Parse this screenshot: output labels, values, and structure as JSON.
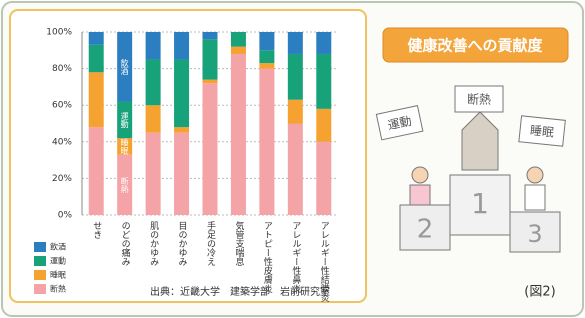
{
  "chart_data": {
    "type": "stacked_bar",
    "categories": [
      "せき",
      "のどの痛み",
      "肌のかゆみ",
      "目のかゆみ",
      "手足の冷え",
      "気管支喘息",
      "アトピー性皮膚炎",
      "アレルギー性鼻炎",
      "アレルギー性結膜炎"
    ],
    "series": [
      {
        "name": "飲酒",
        "color": "#2b7fc1",
        "values": [
          7,
          38,
          15,
          15,
          4,
          0,
          10,
          12,
          12
        ]
      },
      {
        "name": "運動",
        "color": "#18a27a",
        "values": [
          15,
          20,
          25,
          37,
          22,
          8,
          7,
          25,
          30
        ]
      },
      {
        "name": "睡眠",
        "color": "#f5a231",
        "values": [
          30,
          9,
          15,
          3,
          2,
          4,
          3,
          13,
          18
        ]
      },
      {
        "name": "断熱",
        "color": "#f4a3a7",
        "values": [
          48,
          33,
          45,
          45,
          72,
          88,
          80,
          50,
          40
        ]
      }
    ],
    "ylim": [
      0,
      100
    ],
    "yticks": [
      {
        "value": 0,
        "label": "0%"
      },
      {
        "value": 20,
        "label": "20%"
      },
      {
        "value": 40,
        "label": "40%"
      },
      {
        "value": 60,
        "label": "60%"
      },
      {
        "value": 80,
        "label": "80%"
      },
      {
        "value": 100,
        "label": "100%"
      }
    ],
    "source": "出典：近畿大学　建築学部　岩前研究室"
  },
  "illustration": {
    "title": "健康改善への貢献度",
    "signs": [
      "運動",
      "断熱",
      "睡眠"
    ],
    "ranks": [
      "2",
      "1",
      "3"
    ],
    "figure_label": "(図2)"
  }
}
